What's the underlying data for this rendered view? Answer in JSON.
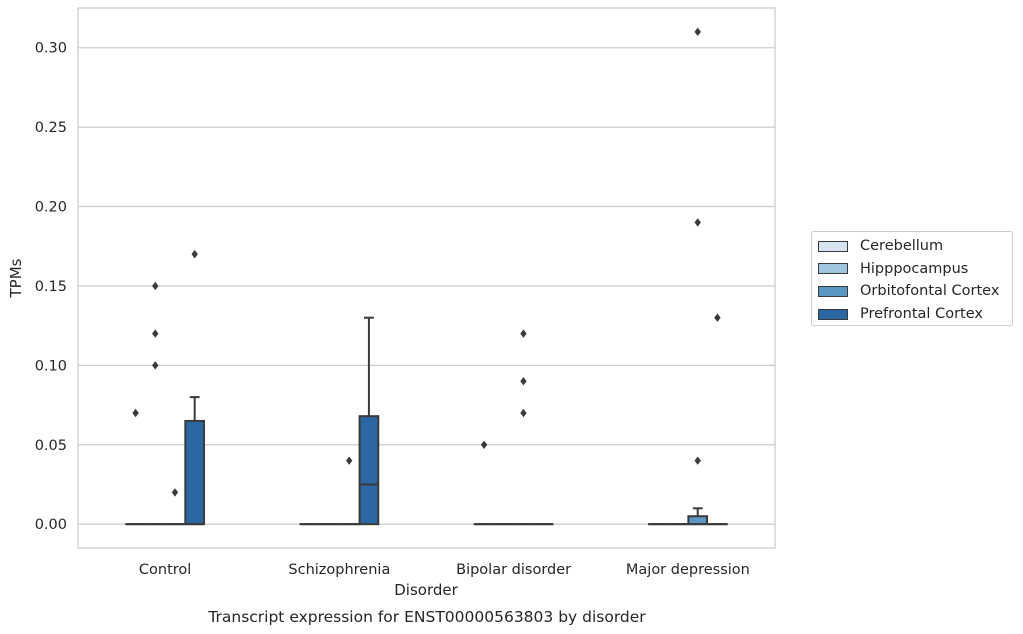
{
  "chart_data": {
    "type": "box",
    "title": "",
    "caption": "Transcript expression for ENST00000563803 by disorder",
    "xlabel": "Disorder",
    "ylabel": "TPMs",
    "categories": [
      "Control",
      "Schizophrenia",
      "Bipolar disorder",
      "Major depression"
    ],
    "ylim": [
      -0.015,
      0.325
    ],
    "yticks": [
      "0.00",
      "0.05",
      "0.10",
      "0.15",
      "0.20",
      "0.25",
      "0.30"
    ],
    "grid": true,
    "legend_position": "right",
    "series": [
      {
        "name": "Cerebellum",
        "color": "#d5e4f0",
        "boxes": [
          {
            "q1": 0,
            "median": 0,
            "q3": 0,
            "whisker_low": 0,
            "whisker_high": 0,
            "outliers": [
              0.07
            ]
          },
          {
            "q1": 0,
            "median": 0,
            "q3": 0,
            "whisker_low": 0,
            "whisker_high": 0,
            "outliers": []
          },
          {
            "q1": 0,
            "median": 0,
            "q3": 0,
            "whisker_low": 0,
            "whisker_high": 0,
            "outliers": [
              0.05
            ]
          },
          {
            "q1": 0,
            "median": 0,
            "q3": 0,
            "whisker_low": 0,
            "whisker_high": 0,
            "outliers": []
          }
        ]
      },
      {
        "name": "Hipppocampus",
        "color": "#9ec6de",
        "boxes": [
          {
            "q1": 0,
            "median": 0,
            "q3": 0,
            "whisker_low": 0,
            "whisker_high": 0,
            "outliers": [
              0.15,
              0.12,
              0.1
            ]
          },
          {
            "q1": 0,
            "median": 0,
            "q3": 0,
            "whisker_low": 0,
            "whisker_high": 0,
            "outliers": []
          },
          {
            "q1": 0,
            "median": 0,
            "q3": 0,
            "whisker_low": 0,
            "whisker_high": 0,
            "outliers": []
          },
          {
            "q1": 0,
            "median": 0,
            "q3": 0,
            "whisker_low": 0,
            "whisker_high": 0,
            "outliers": []
          }
        ]
      },
      {
        "name": "Orbitofontal Cortex",
        "color": "#5c97c4",
        "boxes": [
          {
            "q1": 0,
            "median": 0,
            "q3": 0,
            "whisker_low": 0,
            "whisker_high": 0,
            "outliers": [
              0.02
            ]
          },
          {
            "q1": 0,
            "median": 0,
            "q3": 0,
            "whisker_low": 0,
            "whisker_high": 0,
            "outliers": [
              0.04
            ]
          },
          {
            "q1": 0,
            "median": 0,
            "q3": 0,
            "whisker_low": 0,
            "whisker_high": 0,
            "outliers": [
              0.12,
              0.09,
              0.07
            ]
          },
          {
            "q1": 0,
            "median": 0,
            "q3": 0.005,
            "whisker_low": 0,
            "whisker_high": 0.01,
            "outliers": [
              0.31,
              0.19,
              0.04
            ]
          }
        ]
      },
      {
        "name": "Prefrontal Cortex",
        "color": "#2a67a3",
        "boxes": [
          {
            "q1": 0,
            "median": 0,
            "q3": 0.065,
            "whisker_low": 0,
            "whisker_high": 0.08,
            "outliers": [
              0.17
            ]
          },
          {
            "q1": 0,
            "median": 0.025,
            "q3": 0.068,
            "whisker_low": 0,
            "whisker_high": 0.13,
            "outliers": []
          },
          {
            "q1": 0,
            "median": 0,
            "q3": 0,
            "whisker_low": 0,
            "whisker_high": 0,
            "outliers": []
          },
          {
            "q1": 0,
            "median": 0,
            "q3": 0,
            "whisker_low": 0,
            "whisker_high": 0,
            "outliers": [
              0.13
            ]
          }
        ]
      }
    ]
  }
}
